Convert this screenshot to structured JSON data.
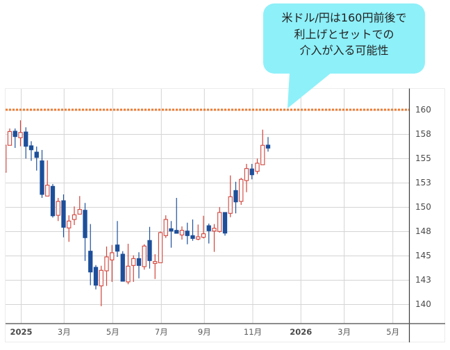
{
  "callout": {
    "lines": [
      "米ドル/円は160円前後で",
      "利上げとセットでの",
      "介入が入る可能性"
    ],
    "background": "#8ef0f9"
  },
  "chart_data": {
    "type": "candlestick",
    "title": "",
    "xlabel": "",
    "ylabel": "",
    "grid": true,
    "y_axis_position": "right",
    "x_ticks": [
      {
        "label": "2025",
        "year": true
      },
      {
        "label": "3月",
        "year": false
      },
      {
        "label": "5月",
        "year": false
      },
      {
        "label": "7月",
        "year": false
      },
      {
        "label": "9月",
        "year": false
      },
      {
        "label": "11月",
        "year": false
      },
      {
        "label": "2026",
        "year": true
      },
      {
        "label": "3月",
        "year": false
      },
      {
        "label": "5月",
        "year": false
      }
    ],
    "y_ticks": [
      {
        "value": 160,
        "label": "160"
      },
      {
        "value": 157.5,
        "label": "158"
      },
      {
        "value": 155,
        "label": "155"
      },
      {
        "value": 152.5,
        "label": "153"
      },
      {
        "value": 150,
        "label": "150"
      },
      {
        "value": 147.5,
        "label": "148"
      },
      {
        "value": 145,
        "label": "145"
      },
      {
        "value": 142.5,
        "label": "143"
      },
      {
        "value": 140,
        "label": "140"
      }
    ],
    "ylim": [
      138.0,
      162.1
    ],
    "reference_line": {
      "value": 160,
      "color": "#ee7b30",
      "style": "dotted"
    },
    "colors": {
      "up": "#d0433a",
      "down": "#1d4f9a"
    },
    "candle_fields": [
      "open",
      "high",
      "low",
      "close"
    ],
    "candles": [
      [
        153.57,
        156.4,
        153.57,
        156.36
      ],
      [
        156.34,
        158.07,
        156.34,
        157.76
      ],
      [
        157.79,
        158.07,
        156.07,
        157.24
      ],
      [
        157.12,
        158.91,
        156.24,
        157.66
      ],
      [
        157.71,
        158.19,
        154.98,
        156.24
      ],
      [
        156.29,
        156.76,
        154.74,
        155.88
      ],
      [
        155.64,
        156.21,
        153.74,
        155.09
      ],
      [
        154.74,
        155.86,
        150.93,
        151.29
      ],
      [
        151.12,
        154.79,
        151.12,
        152.24
      ],
      [
        152.12,
        152.36,
        148.91,
        149.09
      ],
      [
        149.14,
        150.93,
        148.55,
        150.57
      ],
      [
        150.64,
        151.29,
        146.88,
        147.91
      ],
      [
        147.84,
        149.14,
        146.41,
        148.55
      ],
      [
        148.71,
        150.05,
        148.14,
        149.19
      ],
      [
        149.26,
        151.12,
        149.26,
        149.74
      ],
      [
        149.66,
        150.41,
        144.45,
        146.84
      ],
      [
        145.45,
        148.24,
        141.95,
        143.31
      ],
      [
        143.79,
        144.02,
        141.52,
        141.95
      ],
      [
        141.88,
        143.95,
        139.79,
        143.48
      ],
      [
        143.43,
        145.93,
        141.88,
        144.86
      ],
      [
        144.55,
        146.09,
        142.29,
        145.29
      ],
      [
        146.09,
        148.55,
        144.86,
        145.45
      ],
      [
        145.14,
        145.45,
        142.36,
        142.36
      ],
      [
        142.29,
        146.21,
        142.05,
        143.91
      ],
      [
        143.98,
        145.02,
        142.29,
        144.69
      ],
      [
        144.69,
        145.34,
        142.66,
        143.98
      ],
      [
        143.86,
        146.16,
        143.55,
        145.98
      ],
      [
        146.55,
        147.95,
        143.66,
        144.48
      ],
      [
        144.19,
        145.14,
        142.59,
        144.38
      ],
      [
        144.26,
        147.48,
        144.26,
        147.36
      ],
      [
        147.05,
        149.14,
        146.81,
        148.71
      ],
      [
        147.76,
        148.55,
        145.81,
        147.52
      ],
      [
        147.59,
        150.93,
        147.29,
        147.29
      ],
      [
        147.12,
        148.0,
        146.64,
        147.59
      ],
      [
        147.52,
        148.38,
        146.16,
        147.05
      ],
      [
        147.05,
        148.71,
        146.52,
        146.76
      ],
      [
        146.69,
        148.19,
        146.57,
        146.93
      ],
      [
        146.88,
        149.09,
        146.76,
        147.24
      ],
      [
        148.07,
        148.29,
        146.24,
        147.55
      ],
      [
        147.52,
        148.24,
        145.38,
        147.81
      ],
      [
        147.48,
        149.98,
        147.36,
        149.43
      ],
      [
        149.43,
        149.43,
        147.05,
        147.31
      ],
      [
        149.34,
        153.24,
        148.95,
        151.05
      ],
      [
        151.69,
        152.59,
        149.34,
        150.52
      ],
      [
        150.57,
        153.0,
        150.21,
        152.84
      ],
      [
        152.71,
        154.43,
        151.52,
        153.95
      ],
      [
        153.91,
        154.43,
        152.84,
        153.31
      ],
      [
        153.66,
        154.98,
        153.38,
        154.5
      ],
      [
        154.34,
        157.95,
        154.34,
        156.34
      ],
      [
        156.36,
        157.19,
        155.69,
        156.05
      ]
    ]
  }
}
